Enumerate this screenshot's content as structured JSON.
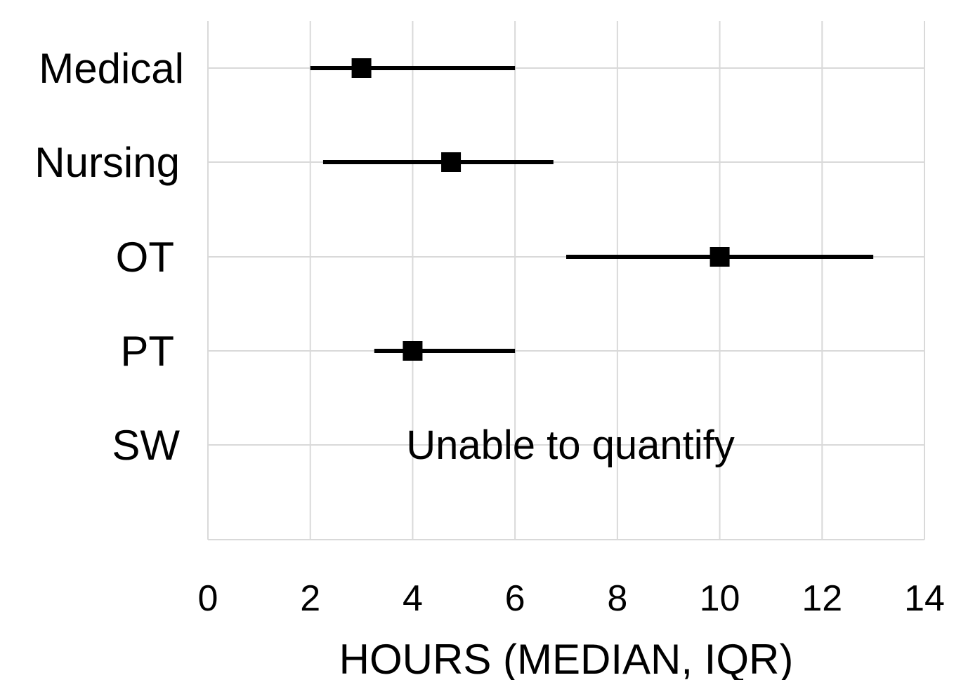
{
  "chart_data": {
    "type": "scatter",
    "subtype": "horizontal median with IQR error bars",
    "categories": [
      "Medical",
      "Nursing",
      "OT",
      "PT",
      "SW"
    ],
    "median": [
      3,
      4.75,
      10,
      4,
      null
    ],
    "iqr_low": [
      2,
      2.25,
      7,
      3.25,
      null
    ],
    "iqr_high": [
      6,
      6.75,
      13,
      6,
      null
    ],
    "xlim": [
      0,
      14
    ],
    "xticks": [
      0,
      2,
      4,
      6,
      8,
      10,
      12,
      14
    ],
    "xticklabels": [
      "0",
      "2",
      "4",
      "6",
      "8",
      "10",
      "12",
      "14"
    ],
    "xlabel": "HOURS (MEDIAN, IQR)",
    "ylabel": "",
    "title": "",
    "grid": true,
    "annotations": [
      {
        "category": "SW",
        "text": "Unable to quantify"
      }
    ],
    "colors": {
      "marker": "#000000",
      "grid": "#d9d9d9"
    }
  }
}
